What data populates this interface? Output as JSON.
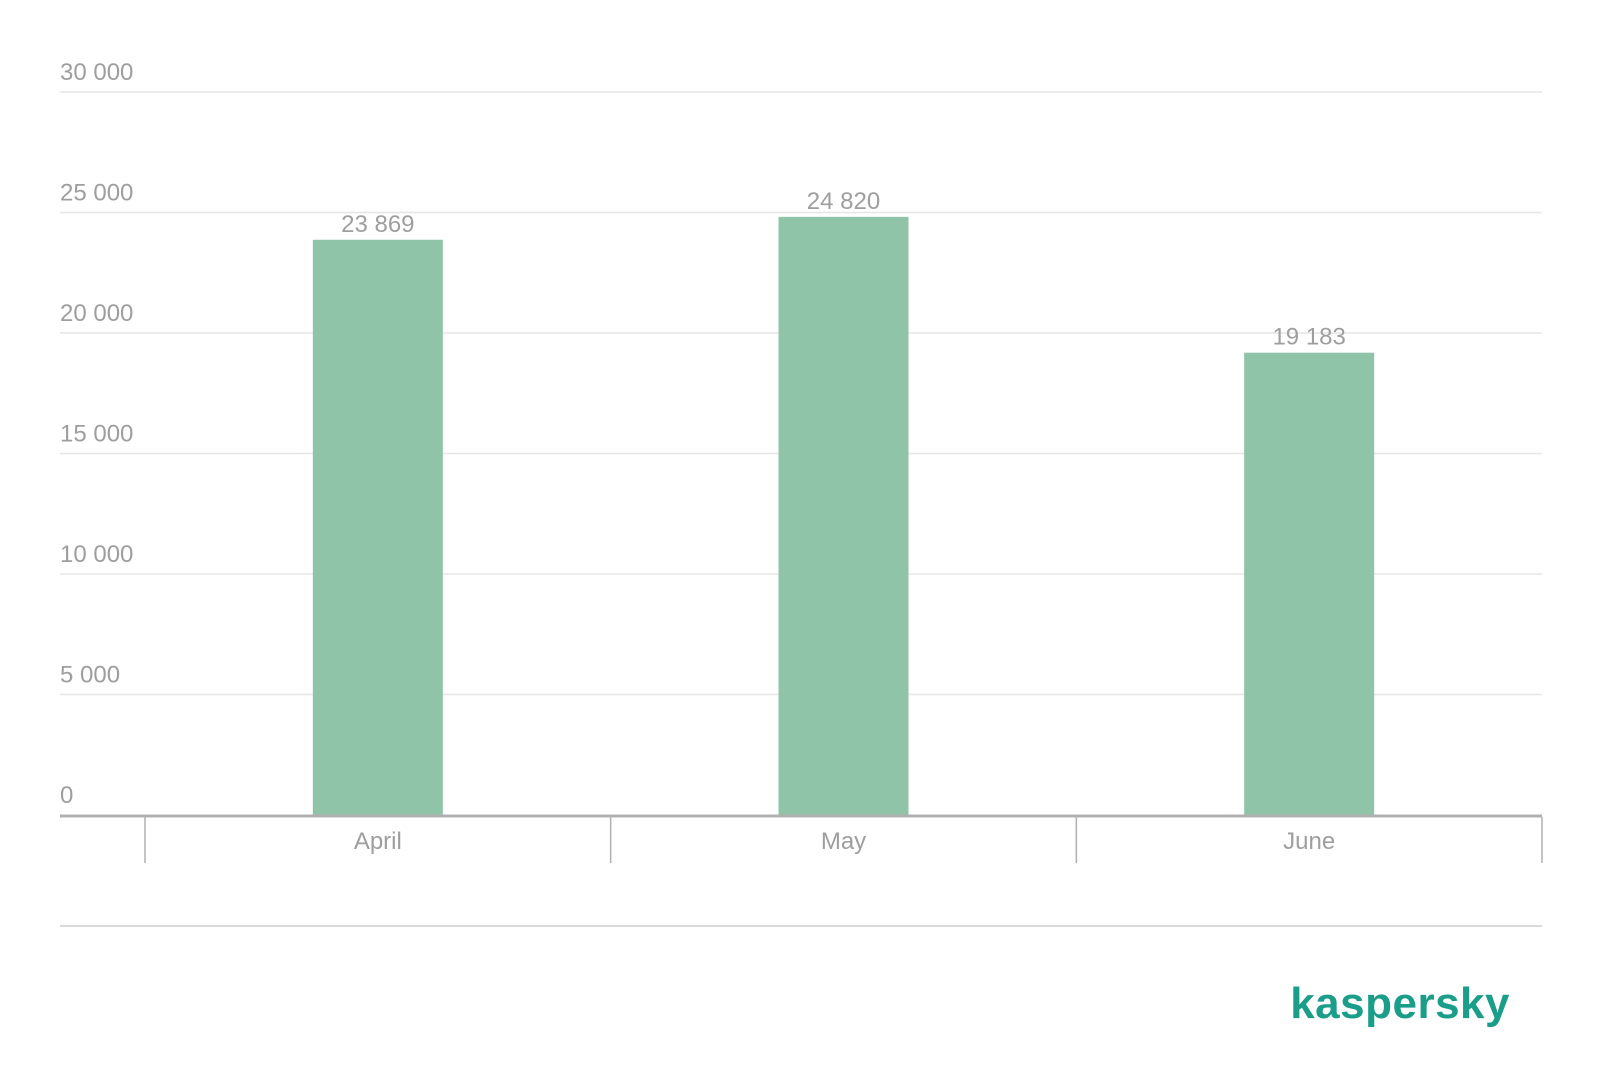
{
  "chart_data": {
    "type": "bar",
    "categories": [
      "April",
      "May",
      "June"
    ],
    "values": [
      23869,
      24820,
      19183
    ],
    "value_labels": [
      "23 869",
      "24 820",
      "19 183"
    ],
    "y_ticks": [
      0,
      5000,
      10000,
      15000,
      20000,
      25000,
      30000
    ],
    "y_tick_labels": [
      "0",
      "5 000",
      "10 000",
      "15 000",
      "20 000",
      "25 000",
      "30 000"
    ],
    "ylim": [
      0,
      30000
    ],
    "grid": true,
    "title": "",
    "xlabel": "",
    "ylabel": ""
  },
  "colors": {
    "bar": "#90c4a8",
    "grid": "#e6e6e6",
    "axis": "#b0b0b0",
    "text": "#9e9e9e",
    "brand": "#1a9e8a"
  },
  "brand": {
    "logo_text": "kaspersky"
  }
}
